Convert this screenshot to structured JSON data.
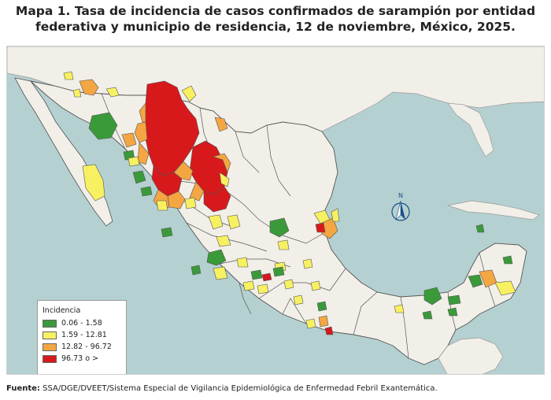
{
  "title_line1": "Mapa 1. Tasa de incidencia de casos confirmados de sarampión por entidad",
  "title_line2": "federativa y municipio de residencia, 12 de noviembre, México, 2025.",
  "legend": {
    "title": "Incidencia",
    "items": [
      {
        "label": "0.06 - 1.58",
        "color": "#3a9a3a"
      },
      {
        "label": "1.59 - 12.81",
        "color": "#f7f161"
      },
      {
        "label": "12.82 - 96.72",
        "color": "#f4a642"
      },
      {
        "label": "96.73 o >",
        "color": "#d7191c"
      }
    ]
  },
  "north_label": "N",
  "source_label": "Fuente:",
  "source_text": " SSA/DGE/DVEET/Sistema Especial de Vigilancia Epidemiológica de Enfermedad Febril Exantemática.",
  "colors": {
    "sea": "#b5d0d0",
    "land": "#f2efe9",
    "boundary": "#555555",
    "green": "#3a9a3a",
    "yellow": "#f7f161",
    "orange": "#f4a642",
    "red": "#d7191c"
  }
}
